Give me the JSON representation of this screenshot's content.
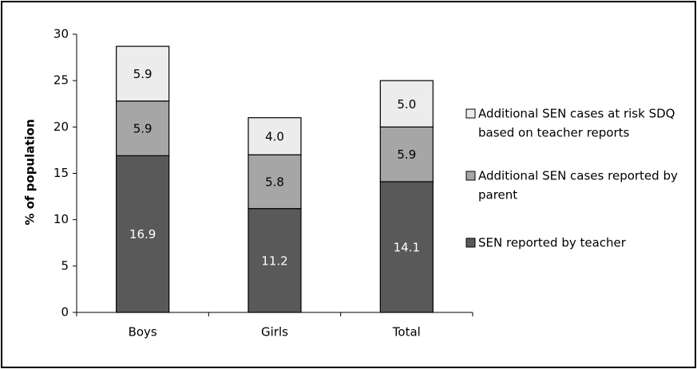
{
  "chart_data": {
    "type": "bar",
    "stacked": true,
    "categories": [
      "Boys",
      "Girls",
      "Total"
    ],
    "ylabel": "% of population",
    "ylim": [
      0,
      30
    ],
    "yticks": [
      "0",
      "5",
      "10",
      "15",
      "20",
      "25",
      "30"
    ],
    "grid": false,
    "legend_position": "right",
    "series": [
      {
        "name": "SEN reported by teacher",
        "values": [
          16.9,
          11.2,
          14.1
        ],
        "labels": [
          "16.9",
          "11.2",
          "14.1"
        ],
        "color": "#595959",
        "label_color": "#ffffff"
      },
      {
        "name": "Additional SEN cases reported by parent",
        "values": [
          5.9,
          5.8,
          5.9
        ],
        "labels": [
          "5.9",
          "5.8",
          "5.9"
        ],
        "color": "#a6a6a6",
        "label_color": "#000000"
      },
      {
        "name": "Additional SEN cases at risk SDQ based on teacher reports",
        "values": [
          5.9,
          4.0,
          5.0
        ],
        "labels": [
          "5.9",
          "4.0",
          "5.0"
        ],
        "color": "#ececec",
        "label_color": "#000000"
      }
    ],
    "legend": [
      {
        "series": 2,
        "lines": [
          "Additional SEN cases at risk SDQ",
          "based on teacher reports"
        ]
      },
      {
        "series": 1,
        "lines": [
          "Additional SEN cases reported by",
          "parent"
        ]
      },
      {
        "series": 0,
        "lines": [
          "SEN reported by teacher"
        ]
      }
    ]
  }
}
